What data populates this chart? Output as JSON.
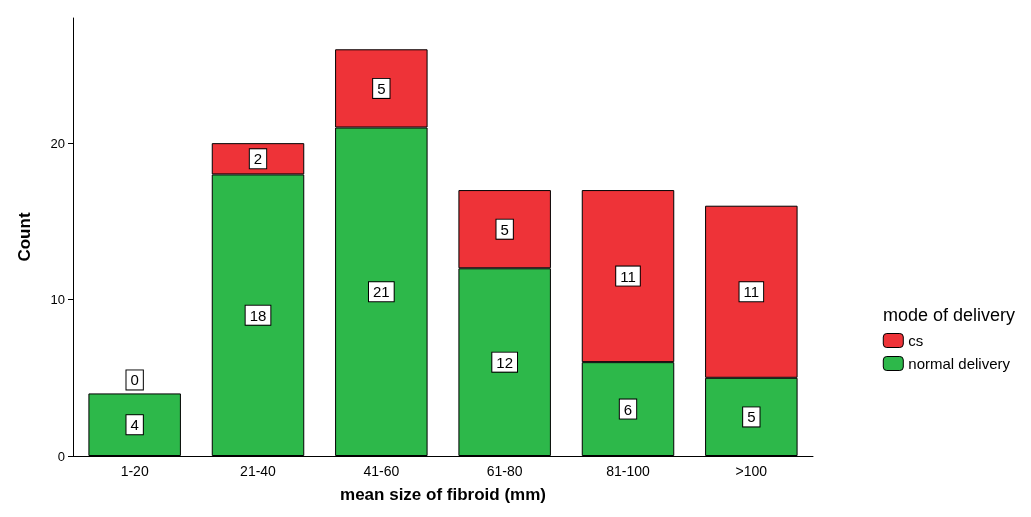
{
  "chart_data": {
    "type": "bar",
    "stacked": true,
    "xlabel": "mean size of fibroid (mm)",
    "ylabel": "Count",
    "legend_title": "mode of delivery",
    "legend": "right",
    "categories": [
      "1-20",
      "21-40",
      "41-60",
      "61-80",
      "81-100",
      ">100"
    ],
    "series": [
      {
        "name": "normal delivery",
        "color": "#2db84a",
        "values": [
          4,
          18,
          21,
          12,
          6,
          5
        ]
      },
      {
        "name": "cs",
        "color": "#ee3338",
        "values": [
          0,
          2,
          5,
          5,
          11,
          11
        ]
      }
    ],
    "ylim": [
      0,
      28
    ],
    "yticks": [
      0,
      10,
      20
    ],
    "grid": false,
    "data_labels": true
  }
}
